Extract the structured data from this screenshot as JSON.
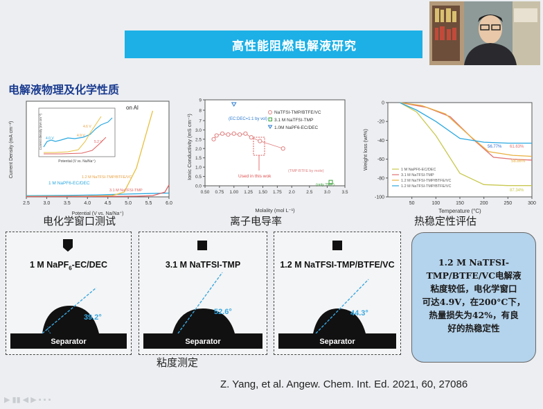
{
  "banner": {
    "title": "高性能阻燃电解液研究"
  },
  "section_title": "电解液物理及化学性质",
  "captions": {
    "echem": "电化学窗口测试",
    "conductivity": "离子电导率",
    "thermal": "热稳定性评估",
    "viscosity": "粘度测定"
  },
  "contact_angle_panels": [
    {
      "label_main": "1 M NaPF",
      "label_sub": "6",
      "label_rest": "-EC/DEC",
      "angle": "39.2°",
      "separator": "Separator"
    },
    {
      "label_main": "3.1 M NaTFSI-TMP",
      "label_sub": "",
      "label_rest": "",
      "angle": "52.6°",
      "separator": "Separator"
    },
    {
      "label_main": "1.2 M NaTFSI-TMP/BTFE/VC",
      "label_sub": "",
      "label_rest": "",
      "angle": "44.3°",
      "separator": "Separator"
    }
  ],
  "summary": {
    "line1": "1.2 M NaTFSI-",
    "line2": "TMP/BTFE/VC电解液",
    "line3": "粘度较低，电化学窗口",
    "line4": "可达4.9V，在200°C下，",
    "line5": "热量损失为42%，有良",
    "line6": "好的热稳定性"
  },
  "citation": "Z. Yang, et al. Angew. Chem. Int. Ed. 2021, 60, 27086",
  "colors": {
    "banner": "#1db0e6",
    "title": "#1a3b8f",
    "summary_bg": "#b4d3ec",
    "blue": "#2aa8e0",
    "red": "#e06060",
    "yellow": "#e8c040",
    "green": "#3aa03a"
  },
  "chart_data": [
    {
      "type": "line",
      "title": "",
      "annotation": "on Al",
      "xlabel": "Potential (V vs. Na/Na⁺)",
      "ylabel": "Current Density (mA cm⁻²)",
      "xlim": [
        2.5,
        6.0
      ],
      "xticks": [
        "2.5",
        "3.0",
        "3.5",
        "4.0",
        "4.5",
        "5.0",
        "5.5",
        "6.0"
      ],
      "series": [
        {
          "name": "1 M NaPF6-EC/DEC",
          "color": "#2aa8e0",
          "x": [
            2.5,
            3.5,
            4.2,
            4.6,
            5.0,
            5.5,
            6.0
          ],
          "values": [
            0.05,
            0.06,
            0.08,
            0.1,
            0.12,
            0.14,
            0.16
          ]
        },
        {
          "name": "1.2 M NaTFSI-TMP/BTFE/VC",
          "color": "#e8c040",
          "x": [
            2.5,
            4.0,
            4.6,
            4.9,
            5.2,
            5.4,
            5.6
          ],
          "values": [
            0.02,
            0.03,
            0.05,
            0.2,
            1.2,
            2.4,
            3.6
          ]
        },
        {
          "name": "3.1 M NaTFSI-TMP",
          "color": "#e06060",
          "x": [
            2.5,
            4.5,
            5.2,
            5.6,
            5.9,
            6.0
          ],
          "values": [
            0.01,
            0.02,
            0.03,
            0.05,
            0.2,
            0.5
          ]
        }
      ],
      "inset": {
        "xlabel": "Potential (V vs. Na/Na⁺)",
        "ylabel": "Current density (mA cm⁻²)",
        "labels": [
          "4.0 V",
          "4.9 V",
          "5.2 V",
          "4.6 V"
        ]
      }
    },
    {
      "type": "scatter",
      "title": "",
      "xlabel": "Molality (mol L⁻¹)",
      "ylabel": "Ionic Conductivity (mS cm⁻¹)",
      "xlim": [
        0.5,
        3.5
      ],
      "xticks": [
        "0.50",
        "0.75",
        "1.00",
        "1.25",
        "1.50",
        "1.75",
        "2.0",
        "2.5",
        "3.0",
        "3.5"
      ],
      "yticks": [
        "0.0",
        "0.5",
        "1.0",
        "1.5",
        "2.0",
        "2.5",
        "3.0",
        "7",
        "8",
        "9"
      ],
      "legend": [
        "NaTFSI-TMP/BTFE/VC",
        "3.1 M NaTFSI-TMP",
        "1.0M NaPF6-EC/DEC"
      ],
      "series": [
        {
          "name": "NaTFSI-TMP/BTFE/VC",
          "color": "#e08080",
          "x": [
            0.65,
            0.7,
            0.8,
            0.9,
            1.0,
            1.1,
            1.2,
            1.3,
            1.45,
            1.85
          ],
          "values": [
            2.5,
            2.7,
            2.8,
            2.75,
            2.8,
            2.75,
            2.8,
            2.6,
            2.4,
            2.0
          ]
        },
        {
          "name": "3.1 M NaTFSI-TMP",
          "color": "#3aa03a",
          "x": [
            3.1
          ],
          "values": [
            0.2
          ]
        },
        {
          "name": "1.0M NaPF6-EC/DEC",
          "color": "#2a7ad0",
          "x": [
            1.0
          ],
          "values": [
            8.6
          ]
        }
      ],
      "annotations": [
        "(EC:DEC=1:1 by vol)",
        "Used in this wok",
        "(TMP:BTFE by mole)",
        "(only TMP)"
      ]
    },
    {
      "type": "line",
      "title": "",
      "xlabel": "Temperature (°C)",
      "ylabel": "Weight loss (wt%)",
      "xlim": [
        0,
        300
      ],
      "ylim": [
        -100,
        0
      ],
      "xticks": [
        "50",
        "100",
        "150",
        "200",
        "250",
        "300"
      ],
      "yticks": [
        "0",
        "-20",
        "-40",
        "-60",
        "-80",
        "-100"
      ],
      "series": [
        {
          "name": "1 M NaPF6-EC/DEC",
          "color": "#c8c850",
          "x": [
            25,
            60,
            100,
            150,
            200,
            250,
            300
          ],
          "values": [
            0,
            -10,
            -35,
            -75,
            -87,
            -88,
            -88
          ]
        },
        {
          "name": "3.1 M NaTFSI-TMP",
          "color": "#e07070",
          "x": [
            25,
            80,
            130,
            180,
            220,
            260,
            300
          ],
          "values": [
            0,
            -5,
            -15,
            -40,
            -58,
            -60,
            -61
          ]
        },
        {
          "name": "1.2 M NaTFSI-TMP/BTFE/VC",
          "color": "#e8b040",
          "x": [
            25,
            70,
            120,
            170,
            210,
            260,
            300
          ],
          "values": [
            0,
            -3,
            -12,
            -35,
            -52,
            -56,
            -57
          ]
        },
        {
          "name": "1.2 M NaTFSI-TMP/BTFE/VC",
          "color": "#2aa8e0",
          "x": [
            25,
            60,
            100,
            150,
            200,
            250,
            300
          ],
          "values": [
            0,
            -8,
            -20,
            -38,
            -42,
            -43,
            -43
          ]
        }
      ],
      "legend": [
        "1 M NaPF6-EC/DEC",
        "3.1 M NaTFSI-TMP",
        "1.2 M NaTFSI-TMP/BTFE/VC",
        "1.2 M NaTFSI-TMP/BTFE/VC"
      ],
      "annotations": [
        "56.77%",
        "61.63%",
        "58.86%",
        "87.34%"
      ]
    }
  ]
}
